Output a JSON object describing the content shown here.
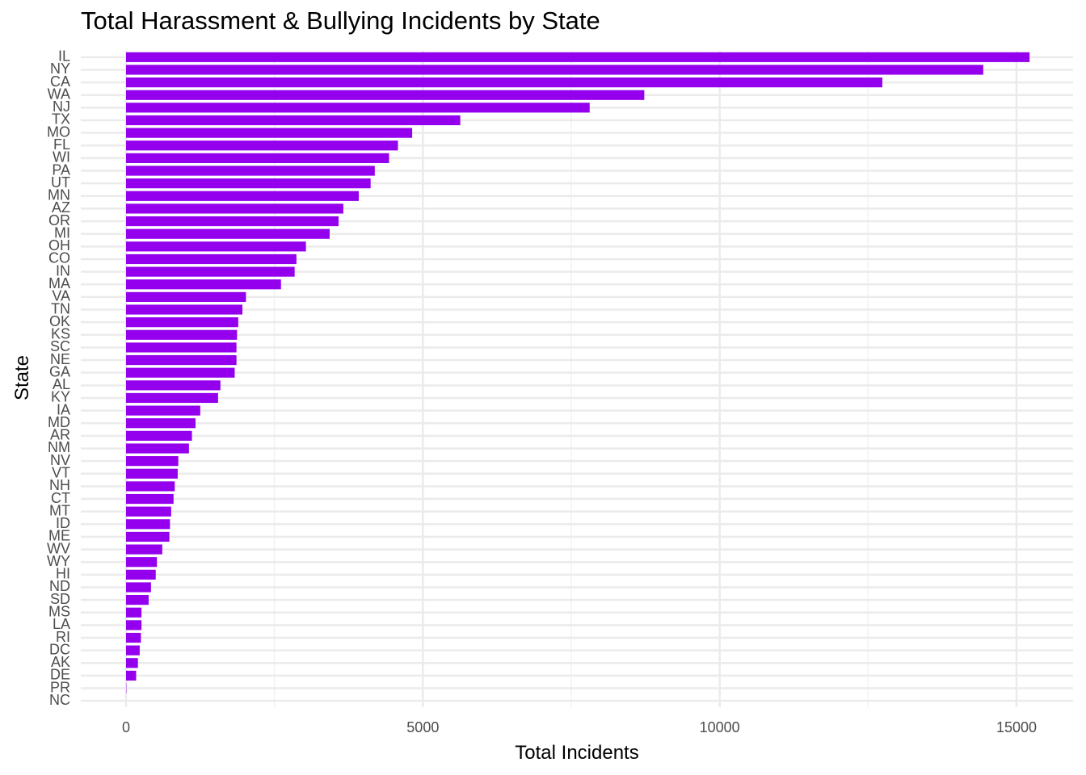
{
  "chart_data": {
    "type": "bar",
    "orientation": "horizontal",
    "title": "Total Harassment & Bullying Incidents by State",
    "xlabel": "Total Incidents",
    "ylabel": "State",
    "xlim": [
      -750,
      16000
    ],
    "xticks": [
      0,
      5000,
      10000,
      15000
    ],
    "grid": true,
    "bar_color": "#9400EE",
    "categories": [
      "IL",
      "NY",
      "CA",
      "WA",
      "NJ",
      "TX",
      "MO",
      "FL",
      "WI",
      "PA",
      "UT",
      "MN",
      "AZ",
      "OR",
      "MI",
      "OH",
      "CO",
      "IN",
      "MA",
      "VA",
      "TN",
      "OK",
      "KS",
      "SC",
      "NE",
      "GA",
      "AL",
      "KY",
      "IA",
      "MD",
      "AR",
      "NM",
      "NV",
      "VT",
      "NH",
      "CT",
      "MT",
      "ID",
      "ME",
      "WV",
      "WY",
      "HI",
      "ND",
      "SD",
      "MS",
      "LA",
      "RI",
      "DC",
      "AK",
      "DE",
      "PR",
      "NC"
    ],
    "values": [
      15220,
      14440,
      12740,
      8730,
      7810,
      5630,
      4820,
      4580,
      4430,
      4190,
      4120,
      3920,
      3660,
      3580,
      3430,
      3030,
      2870,
      2840,
      2610,
      2020,
      1960,
      1890,
      1870,
      1860,
      1860,
      1830,
      1590,
      1550,
      1250,
      1170,
      1110,
      1060,
      880,
      870,
      820,
      800,
      760,
      740,
      730,
      610,
      520,
      500,
      420,
      380,
      260,
      260,
      250,
      230,
      200,
      170,
      5,
      0
    ]
  }
}
